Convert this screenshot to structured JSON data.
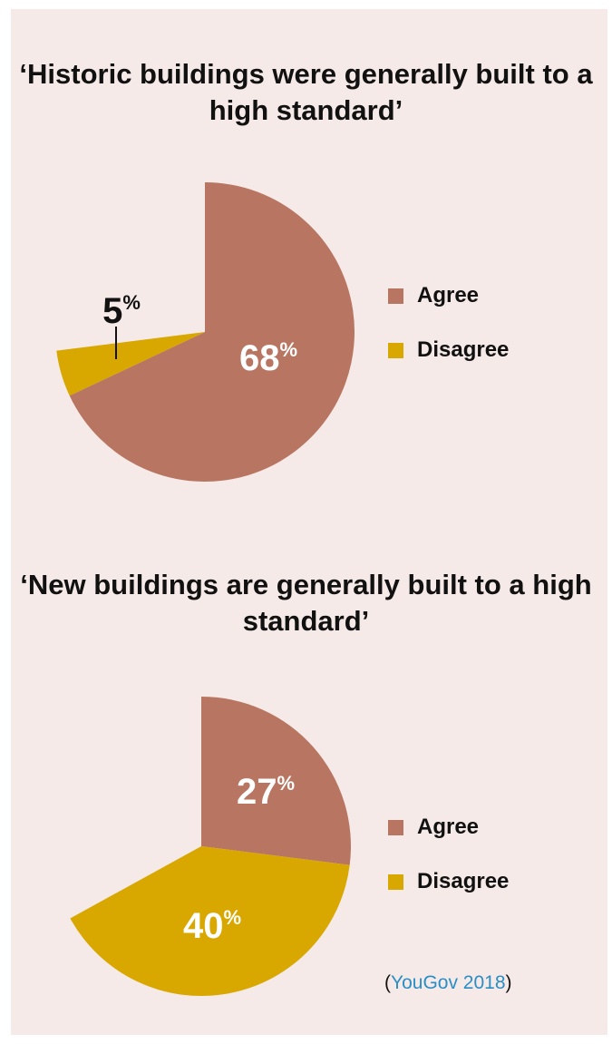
{
  "colors": {
    "agree": "#b87662",
    "disagree": "#d8a700",
    "background": "#f5eae7",
    "label_light": "#ffffff",
    "label_dark": "#111111",
    "link": "#2a8ec6"
  },
  "chart_data": [
    {
      "type": "pie",
      "title": "‘Historic buildings were generally built to a high standard’",
      "categories": [
        "Agree",
        "Disagree"
      ],
      "values": [
        68,
        5
      ],
      "value_labels": [
        "68",
        "5"
      ],
      "unit": "%",
      "legend": [
        "Agree",
        "Disagree"
      ],
      "legend_position": "right"
    },
    {
      "type": "pie",
      "title": "‘New buildings are generally built to a high standard’",
      "categories": [
        "Agree",
        "Disagree"
      ],
      "values": [
        27,
        40
      ],
      "value_labels": [
        "27",
        "40"
      ],
      "unit": "%",
      "legend": [
        "Agree",
        "Disagree"
      ],
      "legend_position": "right"
    }
  ],
  "source": {
    "open": "(",
    "link_text": "YouGov 2018",
    "close": ")"
  }
}
